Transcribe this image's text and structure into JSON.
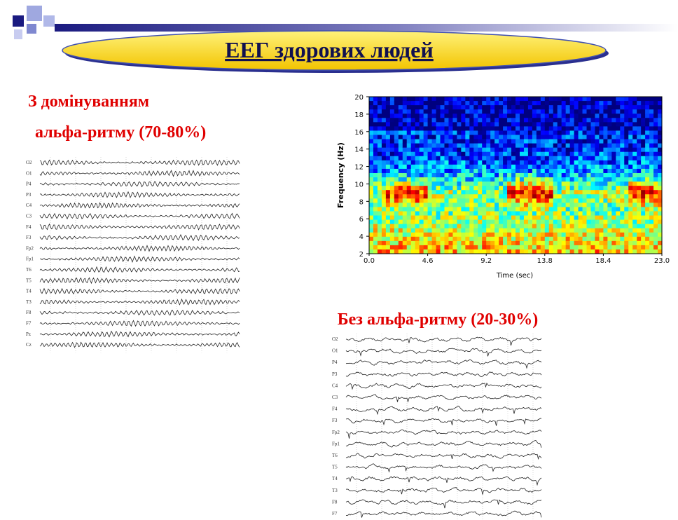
{
  "header": {
    "title": "ЕЕГ здорових людей"
  },
  "left_section": {
    "heading_lines": [
      "З домінуванням",
      "альфа-ритму (70-80%)"
    ],
    "eeg_channels": [
      "O2",
      "O1",
      "P4",
      "P3",
      "C4",
      "C3",
      "F4",
      "F3",
      "Fp2",
      "Fp1",
      "T6",
      "T5",
      "T4",
      "T3",
      "F8",
      "F7",
      "Pz",
      "Cz"
    ]
  },
  "spectrogram": {
    "y_label": "Frequency (Hz)",
    "x_label": "Time (sec)",
    "y_ticks": [
      "20",
      "18",
      "16",
      "14",
      "12",
      "10",
      "8",
      "6",
      "4",
      "2"
    ],
    "x_ticks": [
      "0.0",
      "4.6",
      "9.2",
      "13.8",
      "18.4",
      "23.0"
    ]
  },
  "right_section": {
    "heading": "Без альфа-ритму (20-30%)",
    "eeg_channels": [
      "O2",
      "O1",
      "P4",
      "P3",
      "C4",
      "C3",
      "F4",
      "F3",
      "Fp2",
      "Fp1",
      "T6",
      "T5",
      "T4",
      "T3",
      "F8",
      "F7"
    ]
  }
}
